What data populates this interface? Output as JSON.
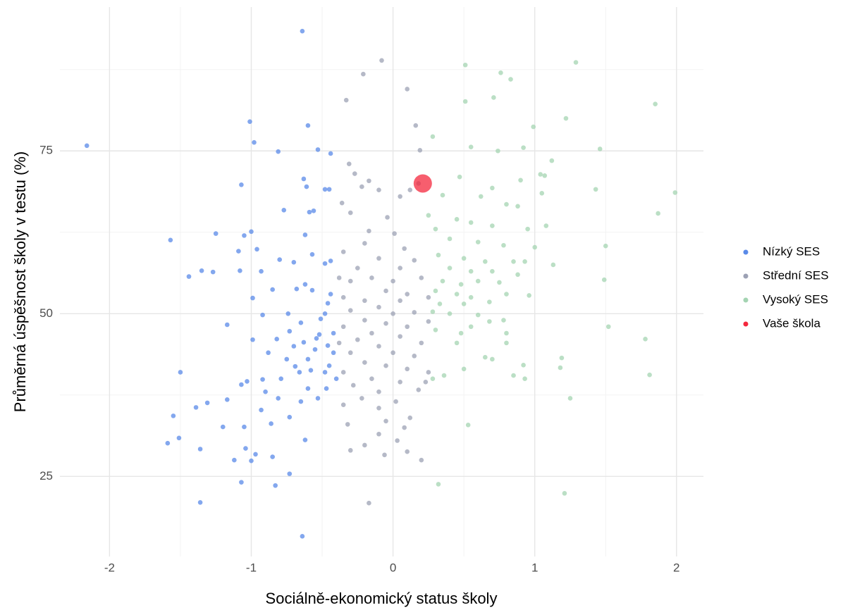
{
  "chart_data": {
    "type": "scatter",
    "x_label": "Sociálně-ekonomický status školy",
    "y_label": "Průměrná úspěšnost školy v testu (%)",
    "xlim": [
      -2.35,
      2.19
    ],
    "ylim": [
      12.7,
      97.1
    ],
    "xticks": [
      -2,
      -1,
      0,
      1,
      2
    ],
    "yticks": [
      25,
      50,
      75
    ],
    "x_minor_ticks": [
      -1.5,
      -0.5,
      0.5,
      1.5
    ],
    "y_minor_ticks": [
      37.5,
      62.5,
      87.5
    ],
    "grid": true,
    "legend": "right",
    "opacity": 0.75,
    "series": [
      {
        "name": "Nízký SES",
        "color": "#5a8ae8",
        "size": 3.3,
        "x": [
          -2.16,
          -1.57,
          -0.64,
          -1.01,
          -0.98,
          -0.6,
          -0.81,
          -0.53,
          -0.44,
          -1.07,
          -0.63,
          -0.61,
          -0.48,
          -0.45,
          -0.77,
          -0.56,
          -0.59,
          -1.25,
          -1.0,
          -1.05,
          -0.62,
          -0.57,
          -1.09,
          -0.96,
          -1.35,
          -1.27,
          -1.44,
          -1.08,
          -0.8,
          -0.93,
          -0.7,
          -0.48,
          -0.44,
          -1.17,
          -0.92,
          -0.99,
          -0.85,
          -0.68,
          -0.57,
          -0.99,
          -0.82,
          -0.65,
          -0.73,
          -0.51,
          -0.63,
          -0.54,
          -0.46,
          -0.46,
          -1.5,
          -0.92,
          -1.03,
          -1.07,
          -0.79,
          -0.69,
          -0.58,
          -0.48,
          -1.31,
          -1.39,
          -1.17,
          -0.93,
          -0.81,
          -0.65,
          -0.53,
          -1.55,
          -1.2,
          -1.05,
          -0.86,
          -0.73,
          -1.59,
          -1.51,
          -1.36,
          -1.04,
          -0.97,
          -1.0,
          -0.85,
          -0.62,
          -1.12,
          -0.73,
          -1.07,
          -0.83,
          -1.36,
          -0.64,
          -0.42,
          -0.45,
          -0.4,
          -0.47,
          -0.55,
          -0.6,
          -0.7,
          -0.75,
          -0.42,
          -0.48,
          -0.52,
          -0.66,
          -0.44,
          -0.62,
          -0.74,
          -0.88,
          -0.9,
          -0.6
        ],
        "y": [
          75.8,
          61.3,
          93.4,
          79.5,
          76.3,
          78.9,
          74.9,
          75.2,
          74.6,
          69.8,
          70.7,
          69.5,
          69.1,
          69.1,
          65.9,
          65.8,
          65.6,
          62.3,
          62.6,
          62.0,
          62.1,
          59.1,
          59.6,
          59.9,
          56.6,
          56.4,
          55.7,
          56.6,
          58.3,
          56.5,
          57.9,
          57.7,
          58.1,
          48.3,
          49.8,
          52.4,
          53.7,
          53.8,
          53.6,
          46.0,
          46.1,
          48.6,
          47.3,
          49.2,
          45.6,
          46.2,
          51.6,
          45.1,
          41.0,
          39.9,
          39.6,
          39.1,
          40.0,
          41.9,
          41.3,
          41.0,
          36.3,
          35.6,
          36.8,
          35.2,
          37.0,
          36.5,
          37.0,
          34.3,
          32.6,
          32.6,
          33.1,
          34.1,
          30.1,
          30.9,
          29.2,
          29.3,
          28.4,
          27.4,
          28.0,
          30.6,
          27.5,
          25.4,
          24.1,
          23.6,
          21.0,
          15.8,
          44,
          42,
          40,
          38.5,
          44.5,
          43,
          45,
          43,
          47,
          50,
          46.8,
          41,
          53,
          54.5,
          50,
          44,
          38,
          38.5
        ]
      },
      {
        "name": "Střední SES",
        "color": "#9ca1b4",
        "size": 3.3,
        "x": [
          -0.08,
          -0.21,
          -0.33,
          0.1,
          0.16,
          0.19,
          -0.31,
          -0.27,
          -0.17,
          -0.1,
          -0.22,
          0.05,
          0.12,
          0.18,
          -0.36,
          -0.3,
          -0.04,
          -0.17,
          0.01,
          0.08,
          -0.2,
          -0.35,
          -0.1,
          0.15,
          -0.25,
          0.05,
          -0.3,
          -0.15,
          0.0,
          0.2,
          -0.05,
          0.1,
          -0.35,
          -0.2,
          0.05,
          0.25,
          -0.1,
          -0.3,
          0.0,
          0.15,
          -0.2,
          -0.05,
          0.1,
          0.25,
          -0.35,
          -0.15,
          0.05,
          -0.25,
          0.2,
          -0.1,
          0.0,
          -0.3,
          0.15,
          -0.2,
          -0.05,
          0.1,
          -0.35,
          0.25,
          -0.15,
          0.05,
          -0.28,
          -0.1,
          0.18,
          -0.22,
          0.02,
          -0.35,
          -0.1,
          0.12,
          -0.32,
          -0.05,
          0.08,
          -0.3,
          -0.2,
          -0.1,
          -0.06,
          0.1,
          0.2,
          -0.17,
          0.03,
          0.23,
          -0.38,
          -0.38
        ],
        "y": [
          88.9,
          86.8,
          82.8,
          84.5,
          78.9,
          75.1,
          73,
          71.5,
          70.4,
          69,
          69.5,
          68,
          69,
          70,
          67,
          65.5,
          64.8,
          62.7,
          62.3,
          60,
          60.8,
          59.5,
          58.5,
          58.2,
          57,
          57,
          55,
          55.5,
          55,
          55.5,
          53.5,
          53,
          52.5,
          52,
          52,
          52.5,
          51,
          50.5,
          50,
          50.2,
          49,
          48.5,
          48,
          48.8,
          48,
          47,
          46.5,
          46,
          45.5,
          45,
          44,
          44,
          43.5,
          42.5,
          42,
          41.5,
          41,
          41,
          40,
          39.5,
          39,
          38,
          38.3,
          37,
          36.5,
          36,
          35.5,
          34,
          33,
          33.5,
          32.5,
          29,
          29.8,
          31.5,
          28.3,
          28.8,
          27.5,
          20.9,
          30.5,
          39.5,
          45.5,
          55.5
        ]
      },
      {
        "name": "Vysoký SES",
        "color": "#a4d4b2",
        "size": 3.3,
        "x": [
          0.51,
          0.76,
          0.83,
          1.29,
          0.51,
          0.71,
          1.22,
          1.85,
          0.99,
          0.28,
          0.55,
          0.74,
          0.92,
          1.46,
          1.12,
          1.04,
          1.07,
          1.43,
          1.99,
          1.87,
          0.47,
          0.9,
          0.7,
          1.05,
          0.35,
          0.62,
          0.8,
          0.88,
          0.25,
          0.45,
          0.55,
          0.3,
          0.7,
          0.95,
          1.08,
          0.4,
          0.6,
          0.78,
          1.0,
          1.5,
          0.32,
          0.5,
          0.65,
          0.85,
          0.93,
          1.13,
          0.4,
          0.55,
          0.7,
          0.88,
          0.35,
          0.48,
          0.6,
          0.75,
          1.49,
          0.3,
          0.45,
          0.55,
          0.8,
          0.96,
          0.33,
          0.5,
          0.68,
          0.4,
          0.28,
          0.6,
          0.78,
          0.55,
          0.68,
          1.52,
          0.3,
          0.48,
          0.8,
          0.45,
          0.8,
          1.78,
          0.65,
          0.7,
          1.19,
          0.92,
          1.18,
          0.5,
          0.28,
          0.36,
          0.93,
          1.81,
          1.25,
          0.53,
          0.32,
          1.21,
          0.85
        ],
        "y": [
          88.2,
          87,
          86,
          88.6,
          82.6,
          83.2,
          80,
          82.2,
          78.7,
          77.2,
          75.6,
          75,
          75.5,
          75.3,
          73.5,
          71.4,
          71.2,
          69.1,
          68.6,
          65.4,
          71,
          70.5,
          69.3,
          68.5,
          68.2,
          68,
          66.8,
          66.5,
          65.1,
          64.5,
          64,
          63,
          63.5,
          63,
          63.5,
          61.5,
          61,
          60.5,
          60.2,
          60.4,
          59,
          58.5,
          58,
          58,
          58,
          57.5,
          57,
          56.5,
          56.5,
          56,
          55,
          54.5,
          55,
          54.8,
          55.2,
          53.5,
          53,
          52.5,
          53,
          52.8,
          51.5,
          51.5,
          51.8,
          50,
          50.3,
          49.8,
          49,
          48,
          48.8,
          48,
          47.5,
          47,
          47,
          45.5,
          45.5,
          46.1,
          43.3,
          43,
          43.2,
          42.1,
          41.7,
          41.5,
          40,
          40.5,
          40,
          40.6,
          37,
          32.9,
          23.8,
          22.4,
          40.5
        ]
      },
      {
        "name": "Vaše škola",
        "color": "#f4283d",
        "size": 13,
        "x": [
          0.21
        ],
        "y": [
          70
        ]
      }
    ]
  }
}
